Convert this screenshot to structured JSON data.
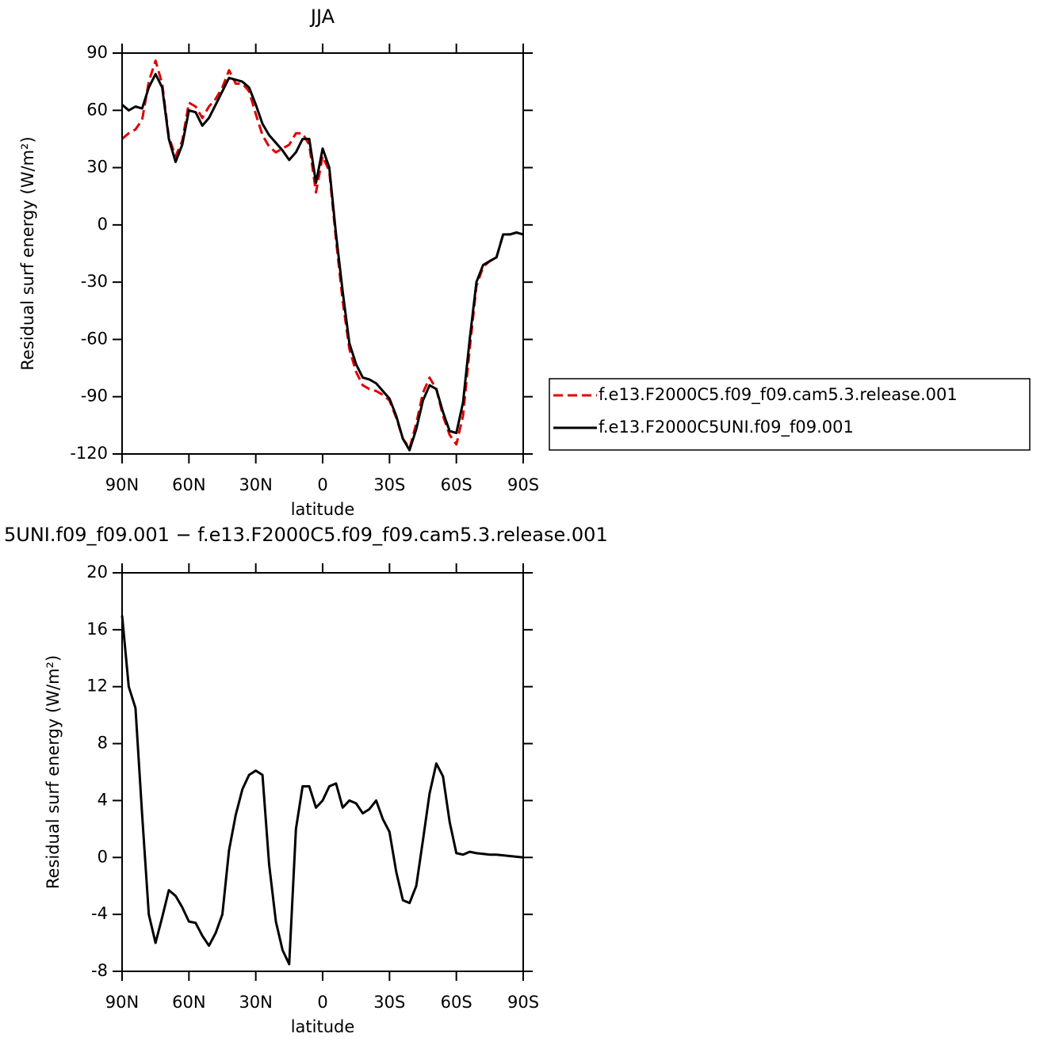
{
  "chart_data": [
    {
      "type": "line",
      "title": "JJA",
      "x_label": "latitude",
      "y_label": "Residual surf energy (W/m²)",
      "x": [
        90,
        87,
        84,
        81,
        78,
        75,
        72,
        69,
        66,
        63,
        60,
        57,
        54,
        51,
        48,
        45,
        42,
        39,
        36,
        33,
        30,
        27,
        24,
        21,
        18,
        15,
        12,
        9,
        6,
        3,
        0,
        -3,
        -6,
        -9,
        -12,
        -15,
        -18,
        -21,
        -24,
        -27,
        -30,
        -33,
        -36,
        -39,
        -42,
        -45,
        -48,
        -51,
        -54,
        -57,
        -60,
        -63,
        -66,
        -69,
        -72,
        -75,
        -78,
        -81,
        -84,
        -87,
        -90
      ],
      "series": [
        {
          "name": "f.e13.F2000C5.f09_f09.cam5.3.release.001",
          "color": "#e00000",
          "dash": true,
          "values": [
            45,
            48,
            50,
            55,
            75,
            86,
            74,
            46,
            36,
            44,
            64,
            62,
            56,
            62,
            66,
            72,
            81,
            74,
            74,
            70,
            58,
            47,
            41,
            38,
            40,
            42,
            48,
            48,
            42,
            17,
            36,
            28,
            -8,
            -40,
            -65,
            -77,
            -84,
            -86,
            -87,
            -89,
            -92,
            -101,
            -112,
            -117,
            -104,
            -88,
            -80,
            -86,
            -100,
            -110,
            -115,
            -100,
            -65,
            -32,
            -22,
            -19,
            -17,
            -5,
            -5,
            -4,
            -5
          ]
        },
        {
          "name": "f.e13.F2000C5UNI.f09_f09.001",
          "color": "#000000",
          "dash": false,
          "values": [
            63,
            60,
            62,
            61,
            72,
            79,
            72,
            45,
            33,
            42,
            60,
            59,
            52,
            56,
            63,
            70,
            77,
            76,
            75,
            72,
            63,
            53,
            47,
            43,
            39,
            34,
            38,
            45,
            45,
            22,
            40,
            30,
            -5,
            -35,
            -62,
            -73,
            -80,
            -81,
            -83,
            -87,
            -91,
            -100,
            -112,
            -118,
            -107,
            -92,
            -84,
            -86,
            -98,
            -108,
            -109,
            -93,
            -60,
            -30,
            -21,
            -19,
            -17,
            -5,
            -5,
            -4,
            -5
          ]
        }
      ],
      "xlim": [
        90,
        -90
      ],
      "xticks": [
        {
          "value": 90,
          "label": "90N"
        },
        {
          "value": 60,
          "label": "60N"
        },
        {
          "value": 30,
          "label": "30N"
        },
        0,
        {
          "value": -30,
          "label": "30S"
        },
        {
          "value": -60,
          "label": "60S"
        },
        {
          "value": -90,
          "label": "90S"
        }
      ],
      "ylim": [
        -120,
        90
      ],
      "yticks": [
        -120,
        -90,
        -60,
        -30,
        0,
        30,
        60,
        90
      ],
      "legend": "right"
    },
    {
      "type": "line",
      "title": "5UNI.f09_f09.001 − f.e13.F2000C5.f09_f09.cam5.3.release.001",
      "x_label": "latitude",
      "y_label": "Residual surf energy (W/m²)",
      "x": [
        90,
        87,
        84,
        81,
        78,
        75,
        72,
        69,
        66,
        63,
        60,
        57,
        54,
        51,
        48,
        45,
        42,
        39,
        36,
        33,
        30,
        27,
        24,
        21,
        18,
        15,
        12,
        9,
        6,
        3,
        0,
        -3,
        -6,
        -9,
        -12,
        -15,
        -18,
        -21,
        -24,
        -27,
        -30,
        -33,
        -36,
        -39,
        -42,
        -45,
        -48,
        -51,
        -54,
        -57,
        -60,
        -63,
        -66,
        -69,
        -72,
        -75,
        -78,
        -81,
        -84,
        -87,
        -90
      ],
      "values": [
        17,
        12,
        10.5,
        3,
        -4,
        -6,
        -4.2,
        -2.3,
        -2.7,
        -3.5,
        -4.5,
        -4.6,
        -5.5,
        -6.2,
        -5.3,
        -4,
        0.5,
        3,
        4.8,
        5.8,
        6.1,
        5.8,
        -0.5,
        -4.5,
        -6.5,
        -7.5,
        2,
        5,
        5,
        3.5,
        4,
        5,
        5.2,
        3.5,
        4,
        3.8,
        3.1,
        3.4,
        4,
        2.7,
        1.8,
        -1,
        -3,
        -3.2,
        -2,
        1.2,
        4.5,
        6.6,
        5.7,
        2.5,
        0.3,
        0.2,
        0.4,
        0.3,
        0.25,
        0.2,
        0.2,
        0.15,
        0.1,
        0.05,
        0
      ],
      "color": "#000000",
      "xlim": [
        90,
        -90
      ],
      "xticks": [
        {
          "value": 90,
          "label": "90N"
        },
        {
          "value": 60,
          "label": "60N"
        },
        {
          "value": 30,
          "label": "30N"
        },
        0,
        {
          "value": -30,
          "label": "30S"
        },
        {
          "value": -60,
          "label": "60S"
        },
        {
          "value": -90,
          "label": "90S"
        }
      ],
      "ylim": [
        -8,
        20
      ],
      "yticks": [
        -8,
        -4,
        0,
        4,
        8,
        12,
        16,
        20
      ]
    }
  ]
}
